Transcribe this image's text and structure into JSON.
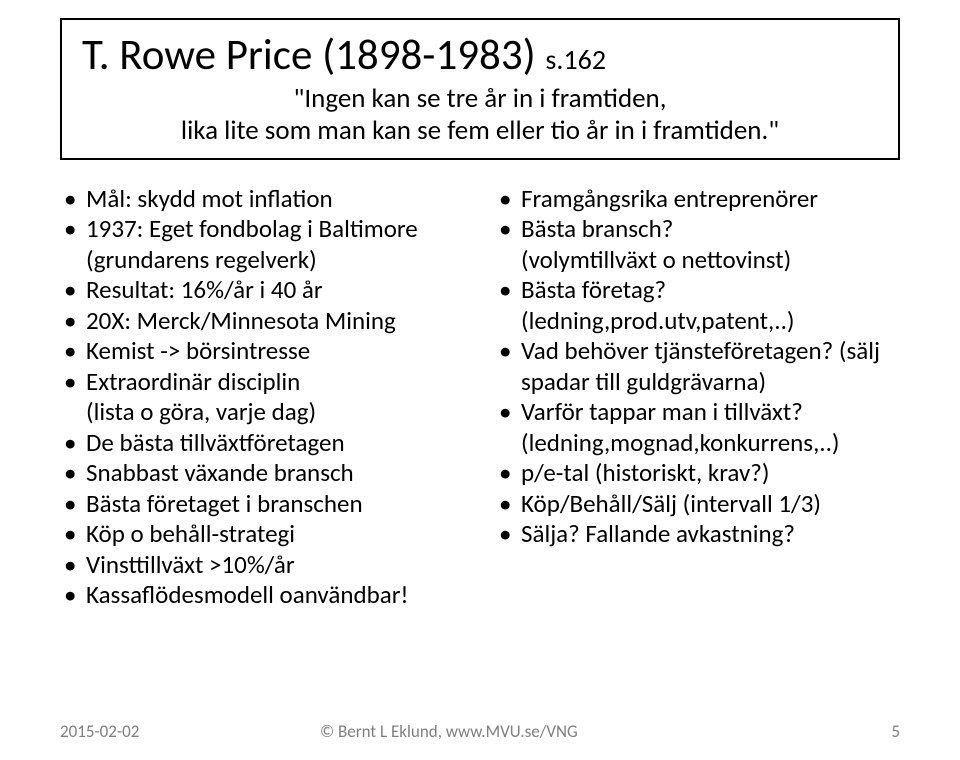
{
  "title": {
    "main": "T. Rowe Price (1898-1983)",
    "suffix": "s.162",
    "subtitle_line1": "\"Ingen kan se tre år in i framtiden,",
    "subtitle_line2": "lika lite som man kan se fem eller tio år in i framtiden.\""
  },
  "left": [
    {
      "text": "Mål: skydd mot inflation"
    },
    {
      "text": "1937: Eget fondbolag i Baltimore (grundarens regelverk)"
    },
    {
      "text": "Resultat: 16%/år i 40 år"
    },
    {
      "text": "20X: Merck/Minnesota Mining"
    },
    {
      "text": "Kemist -> börsintresse"
    },
    {
      "text": "Extraordinär disciplin",
      "sub": "(lista o göra, varje dag)"
    },
    {
      "text": "De bästa tillväxtföretagen"
    },
    {
      "text": "Snabbast växande bransch"
    },
    {
      "text": "Bästa företaget i branschen"
    },
    {
      "text": "Köp o behåll-strategi"
    },
    {
      "text": "Vinsttillväxt  >10%/år"
    },
    {
      "text": "Kassaflödesmodell oanvändbar!"
    }
  ],
  "right": [
    {
      "text": "Framgångsrika entreprenörer"
    },
    {
      "text": "Bästa bransch?",
      "sub": "(volymtillväxt o nettovinst)"
    },
    {
      "text": "Bästa företag?",
      "sub": "(ledning,prod.utv,patent,..)"
    },
    {
      "text": "Vad behöver tjänsteföretagen? (sälj spadar till guldgrävarna)"
    },
    {
      "text": "Varför tappar man i tillväxt? (ledning,mognad,konkurrens,..)"
    },
    {
      "text": "p/e-tal (historiskt, krav?)"
    },
    {
      "text": "Köp/Behåll/Sälj (intervall 1/3)"
    },
    {
      "text": "Sälja? Fallande avkastning?"
    }
  ],
  "footer": {
    "date": "2015-02-02",
    "center": "© Bernt L Eklund, www.MVU.se/VNG",
    "page": "5"
  }
}
